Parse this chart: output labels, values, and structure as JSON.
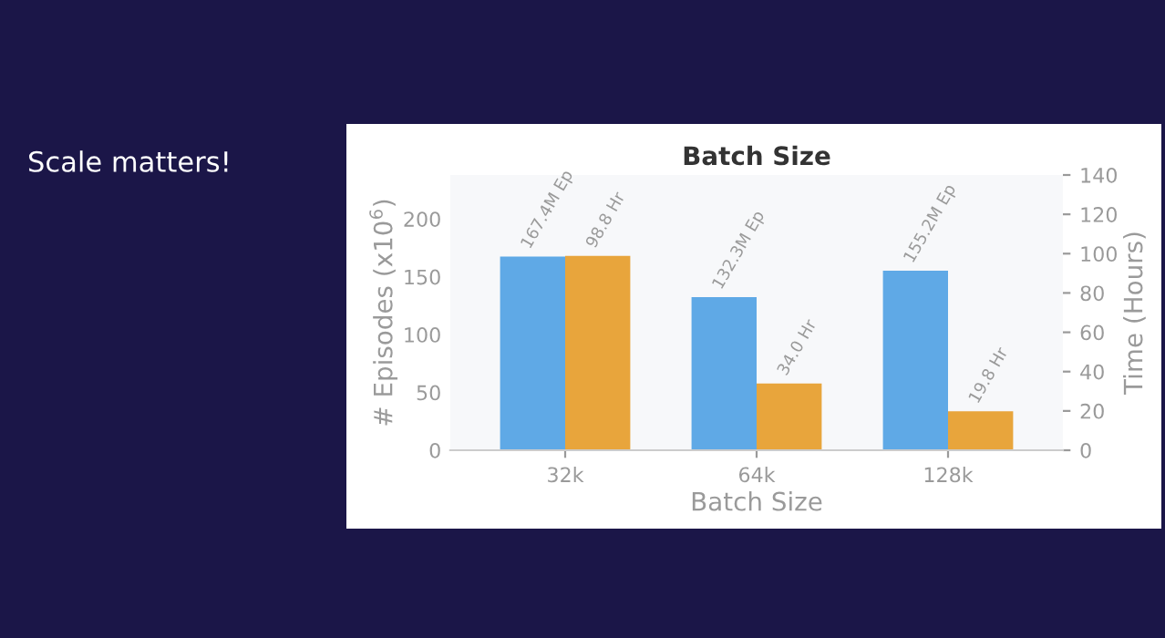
{
  "chart_data": {
    "type": "bar",
    "title": "Batch Size",
    "xlabel": "Batch Size",
    "ylabel": "# Episodes (x10$^{6}$)",
    "y2label": "Time (Hours)",
    "annotations": [
      "Scale matters!"
    ],
    "categories": [
      "32k",
      "64k",
      "128k"
    ],
    "series": [
      {
        "color": "#5fa9e6",
        "values": [
          167.4,
          132.3,
          155.2
        ],
        "value_labels": [
          "167.4M Ep",
          "132.3M Ep",
          "155.2M Ep"
        ]
      },
      {
        "color": "#e8a53c",
        "values": [
          98.8,
          34.0,
          19.8
        ],
        "value_labels": [
          "98.8 Hr",
          "34.0 Hr",
          "19.8 Hr"
        ],
        "axis": "y2"
      }
    ],
    "ylim": [
      0,
      238
    ],
    "yticks": [
      0,
      50,
      100,
      150,
      200
    ],
    "y2lim": [
      0,
      140
    ],
    "y2ticks": [
      0,
      20,
      40,
      60,
      80,
      100,
      120,
      140
    ],
    "grid": false,
    "legend": false
  }
}
